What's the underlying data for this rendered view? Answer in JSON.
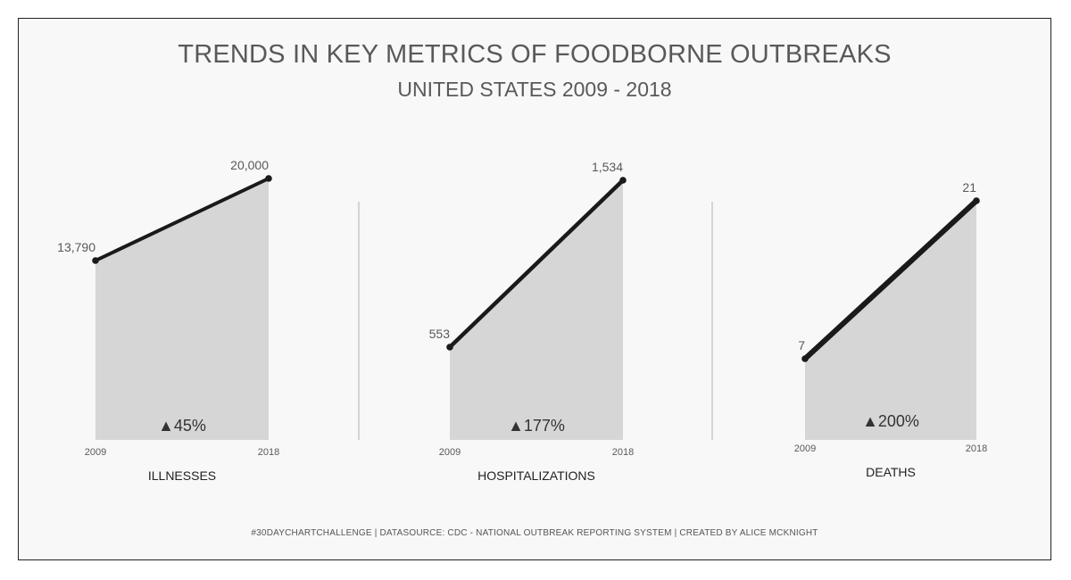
{
  "header": {
    "title": "TRENDS IN KEY METRICS OF FOODBORNE OUTBREAKS",
    "subtitle": "UNITED STATES 2009 - 2018"
  },
  "footer": {
    "text": "#30DAYCHARTCHALLENGE  |  DATASOURCE: CDC - NATIONAL OUTBREAK REPORTING SYSTEM  |  CREATED BY ALICE MCKNIGHT"
  },
  "colors": {
    "line": "#1a1a1a",
    "area": "#d6d6d6",
    "text": "#595959",
    "divider": "#b0b0b0"
  },
  "chart_data": [
    {
      "type": "area",
      "category": "ILLNESSES",
      "x": [
        "2009",
        "2018"
      ],
      "values": [
        13790,
        20000
      ],
      "labels": [
        "13,790",
        "20,000"
      ],
      "change": "▲45%"
    },
    {
      "type": "area",
      "category": "HOSPITALIZATIONS",
      "x": [
        "2009",
        "2018"
      ],
      "values": [
        553,
        1534
      ],
      "labels": [
        "553",
        "1,534"
      ],
      "change": "▲177%"
    },
    {
      "type": "area",
      "category": "DEATHS",
      "x": [
        "2009",
        "2018"
      ],
      "values": [
        7,
        21
      ],
      "labels": [
        "7",
        "21"
      ],
      "change": "▲200%"
    }
  ]
}
